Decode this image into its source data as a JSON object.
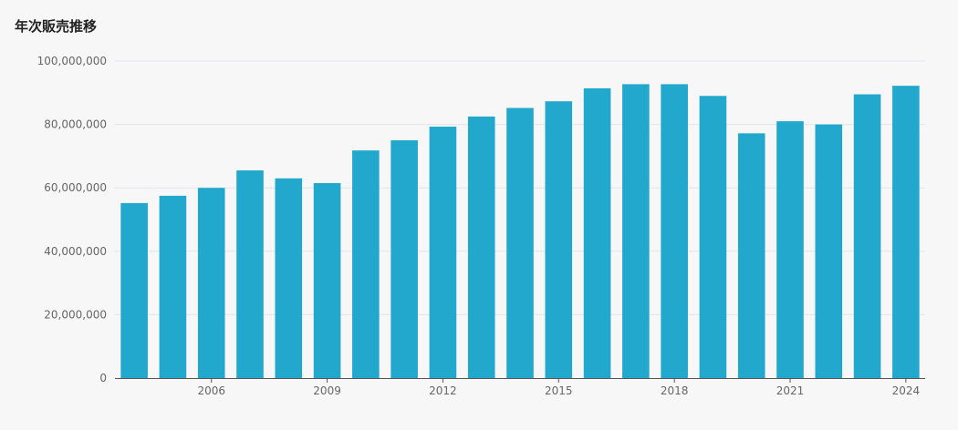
{
  "chart_data": {
    "type": "bar",
    "title": "年次販売推移",
    "categories": [
      "2004",
      "2005",
      "2006",
      "2007",
      "2008",
      "2009",
      "2010",
      "2011",
      "2012",
      "2013",
      "2014",
      "2015",
      "2016",
      "2017",
      "2018",
      "2019",
      "2020",
      "2021",
      "2022",
      "2023",
      "2024"
    ],
    "values": [
      55200000,
      57500000,
      60000000,
      65500000,
      63000000,
      61500000,
      71800000,
      75000000,
      79300000,
      82500000,
      85200000,
      87300000,
      91400000,
      92700000,
      92700000,
      89000000,
      77200000,
      81000000,
      80000000,
      89500000,
      92200000
    ],
    "ylim": [
      0,
      100000000
    ],
    "y_ticks": [
      "0",
      "20,000,000",
      "40,000,000",
      "60,000,000",
      "80,000,000",
      "100,000,000"
    ],
    "x_tick_labels": [
      "2006",
      "2009",
      "2012",
      "2015",
      "2018",
      "2021",
      "2024"
    ],
    "xlabel": "",
    "ylabel": "",
    "grid": true,
    "bar_color": "#21a8cc"
  }
}
